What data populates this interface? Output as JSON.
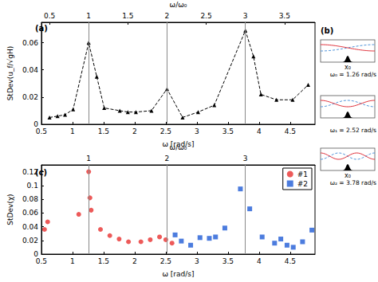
{
  "chart_data": [
    {
      "type": "line",
      "panel_label": "(a)",
      "xlabel": "ω [rad/s]",
      "ylabel": "StDev(u_f/√gH)",
      "x2label": "ω/ω₀",
      "xlim": [
        0.5,
        4.9
      ],
      "xticks": [
        0.5,
        1,
        1.5,
        2,
        2.5,
        3,
        3.5,
        4,
        4.5
      ],
      "x2lim": [
        0.397,
        3.889
      ],
      "x2ticks": [
        0.5,
        1,
        1.5,
        2,
        2.5,
        3,
        3.5
      ],
      "ylim": [
        0,
        0.075
      ],
      "yticks": [
        0,
        0.02,
        0.04,
        0.06
      ],
      "grid": false,
      "vlines": [
        1.26,
        2.52,
        3.78
      ],
      "series": [
        {
          "color": "#000000",
          "marker": "triangle",
          "line_style": "dashed",
          "x": [
            0.63,
            0.76,
            0.88,
            1.01,
            1.26,
            1.39,
            1.51,
            1.76,
            1.89,
            2.02,
            2.27,
            2.52,
            2.77,
            3.02,
            3.28,
            3.78,
            3.91,
            4.03,
            4.28,
            4.54,
            4.79
          ],
          "values": [
            0.005,
            0.006,
            0.007,
            0.011,
            0.06,
            0.035,
            0.012,
            0.01,
            0.009,
            0.009,
            0.01,
            0.026,
            0.005,
            0.009,
            0.014,
            0.069,
            0.05,
            0.022,
            0.018,
            0.018,
            0.029
          ]
        }
      ]
    },
    {
      "type": "scatter",
      "panel_label": "(c)",
      "xlabel": "ω [rad/s]",
      "ylabel": "StDev(χ)",
      "x2label": "ω/ω₀",
      "xlim": [
        0.5,
        4.9
      ],
      "xticks": [
        0.5,
        1,
        1.5,
        2,
        2.5,
        3,
        3.5,
        4,
        4.5
      ],
      "x2lim": [
        0.397,
        3.889
      ],
      "x2ticks": [
        1,
        2,
        3
      ],
      "ylim": [
        0,
        0.13
      ],
      "yticks": [
        0,
        0.02,
        0.04,
        0.06,
        0.08,
        0.1,
        0.12
      ],
      "grid": false,
      "vlines": [
        1.26,
        2.52,
        3.78
      ],
      "legend": "upper right",
      "series": [
        {
          "name": "#1",
          "color": "#e8312f",
          "marker": "circle",
          "x": [
            0.55,
            0.6,
            1.1,
            1.26,
            1.28,
            1.3,
            1.45,
            1.6,
            1.75,
            1.9,
            2.1,
            2.25,
            2.4,
            2.5,
            2.6
          ],
          "values": [
            0.036,
            0.047,
            0.058,
            0.12,
            0.082,
            0.064,
            0.036,
            0.027,
            0.022,
            0.018,
            0.018,
            0.021,
            0.025,
            0.021,
            0.016
          ]
        },
        {
          "name": "#2",
          "color": "#1f5bd6",
          "marker": "square",
          "x": [
            2.65,
            2.75,
            2.9,
            3.05,
            3.2,
            3.3,
            3.45,
            3.7,
            3.85,
            4.05,
            4.25,
            4.35,
            4.45,
            4.55,
            4.7,
            4.85
          ],
          "values": [
            0.028,
            0.019,
            0.013,
            0.024,
            0.023,
            0.025,
            0.038,
            0.095,
            0.066,
            0.025,
            0.016,
            0.022,
            0.013,
            0.01,
            0.018,
            0.035
          ]
        }
      ]
    }
  ],
  "schematic": {
    "panel_label": "(b)",
    "modes": [
      {
        "x_label": "x₀",
        "label": "ω₀ = 1.26 rad/s"
      },
      {
        "label": "ω₁ = 2.52 rad/s"
      },
      {
        "x_label": "x₀",
        "label": "ω₂ = 3.78 rad/s"
      }
    ]
  }
}
